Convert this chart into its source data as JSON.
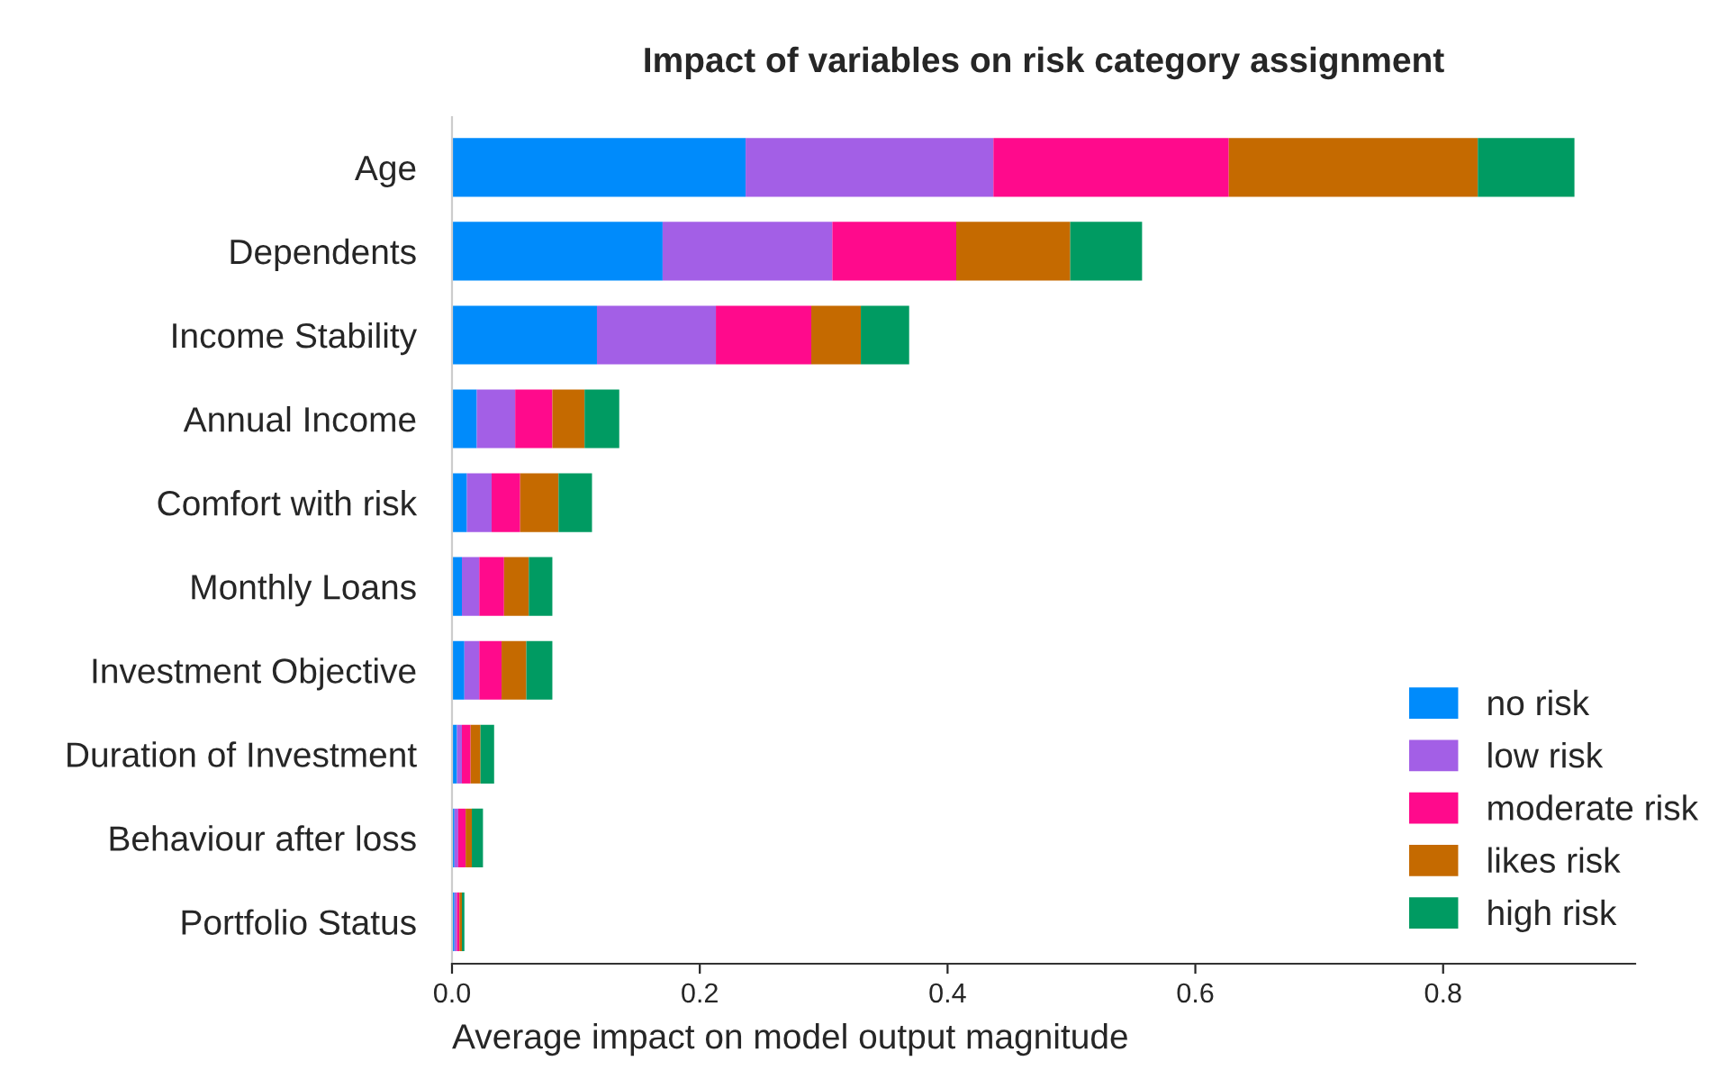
{
  "chart_data": {
    "type": "bar",
    "orientation": "horizontal",
    "stacked": true,
    "title": "Impact of variables on risk category assignment",
    "xlabel": "Average impact on model output magnitude",
    "categories": [
      "Age",
      "Dependents",
      "Income Stability",
      "Annual Income",
      "Comfort with risk",
      "Monthly Loans",
      "Investment Objective",
      "Duration of Investment",
      "Behaviour after loss",
      "Portfolio Status"
    ],
    "series": [
      {
        "name": "no risk",
        "color": "#008bfb",
        "values": [
          0.237,
          0.17,
          0.117,
          0.02,
          0.012,
          0.008,
          0.01,
          0.004,
          0.002,
          0.002
        ]
      },
      {
        "name": "low risk",
        "color": "#a35fe6",
        "values": [
          0.2,
          0.137,
          0.096,
          0.031,
          0.02,
          0.014,
          0.012,
          0.004,
          0.003,
          0.002
        ]
      },
      {
        "name": "moderate risk",
        "color": "#ff0a8c",
        "values": [
          0.19,
          0.1,
          0.077,
          0.03,
          0.023,
          0.02,
          0.018,
          0.007,
          0.006,
          0.002
        ]
      },
      {
        "name": "likes risk",
        "color": "#c56a00",
        "values": [
          0.201,
          0.092,
          0.04,
          0.026,
          0.031,
          0.02,
          0.02,
          0.008,
          0.005,
          0.002
        ]
      },
      {
        "name": "high risk",
        "color": "#009b62",
        "values": [
          0.078,
          0.058,
          0.039,
          0.028,
          0.027,
          0.019,
          0.021,
          0.011,
          0.009,
          0.002
        ]
      }
    ],
    "xlim": [
      0,
      0.955
    ],
    "xticks": [
      {
        "value": 0,
        "label": "0.0"
      },
      {
        "value": 0.2,
        "label": "0.2"
      },
      {
        "value": 0.4,
        "label": "0.4"
      },
      {
        "value": 0.6,
        "label": "0.6"
      },
      {
        "value": 0.8,
        "label": "0.8"
      }
    ],
    "legend": "bottom right",
    "grid": false
  }
}
